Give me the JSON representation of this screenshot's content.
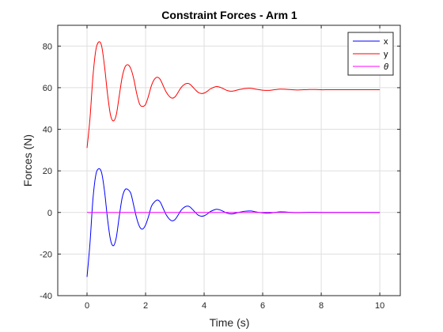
{
  "chart_data": {
    "type": "line",
    "title": "Constraint Forces - Arm 1",
    "xlabel": "Time (s)",
    "ylabel": "Forces (N)",
    "xlim": [
      -1,
      10.7
    ],
    "ylim": [
      -40,
      90
    ],
    "xticks": [
      0,
      2,
      4,
      6,
      8,
      10
    ],
    "yticks": [
      -40,
      -20,
      0,
      20,
      40,
      60,
      80
    ],
    "grid": true,
    "legend_position": "top-right",
    "series": [
      {
        "name": "x",
        "color": "#0000ff",
        "x": [
          0,
          0.1,
          0.2,
          0.3,
          0.4,
          0.5,
          0.6,
          0.7,
          0.8,
          0.9,
          1.0,
          1.1,
          1.2,
          1.3,
          1.4,
          1.5,
          1.6,
          1.7,
          1.8,
          1.9,
          2.0,
          2.1,
          2.2,
          2.3,
          2.4,
          2.5,
          2.6,
          2.7,
          2.8,
          2.9,
          3.0,
          3.1,
          3.2,
          3.3,
          3.4,
          3.5,
          3.6,
          3.7,
          3.8,
          3.9,
          4.0,
          4.1,
          4.2,
          4.3,
          4.4,
          4.5,
          4.6,
          4.7,
          4.8,
          4.9,
          5.0,
          5.2,
          5.4,
          5.6,
          5.8,
          6.0,
          6.2,
          6.4,
          6.6,
          6.8,
          7.0,
          7.2,
          7.4,
          7.6,
          7.8,
          8.0,
          8.2,
          8.4,
          8.6,
          8.8,
          9.0,
          9.2,
          9.4,
          9.6,
          9.8,
          10.0
        ],
        "y": [
          -31,
          -15,
          6,
          18,
          21,
          19,
          10,
          -3,
          -13,
          -16,
          -12,
          -2,
          7,
          11,
          11,
          9,
          3,
          -3,
          -7,
          -8,
          -6,
          -2,
          3,
          5,
          6,
          5,
          2,
          -1,
          -3,
          -4,
          -3.5,
          -1.5,
          0.8,
          2.3,
          3,
          2.8,
          1.5,
          0,
          -1.3,
          -1.8,
          -1.6,
          -0.8,
          0.3,
          1,
          1.5,
          1.4,
          0.9,
          0.2,
          -0.4,
          -0.7,
          -0.6,
          0.1,
          0.6,
          0.7,
          0.2,
          -0.2,
          -0.3,
          0,
          0.3,
          0.2,
          0,
          -0.1,
          0,
          0.1,
          0.1,
          0,
          0,
          0,
          0,
          0,
          0,
          0,
          0,
          0,
          0,
          0
        ]
      },
      {
        "name": "y",
        "color": "#ff0000",
        "x": [
          0,
          0.1,
          0.2,
          0.3,
          0.4,
          0.5,
          0.6,
          0.7,
          0.8,
          0.9,
          1.0,
          1.1,
          1.2,
          1.3,
          1.4,
          1.5,
          1.6,
          1.7,
          1.8,
          1.9,
          2.0,
          2.1,
          2.2,
          2.3,
          2.4,
          2.5,
          2.6,
          2.7,
          2.8,
          2.9,
          3.0,
          3.1,
          3.2,
          3.3,
          3.4,
          3.5,
          3.6,
          3.7,
          3.8,
          3.9,
          4.0,
          4.1,
          4.2,
          4.3,
          4.4,
          4.5,
          4.6,
          4.7,
          4.8,
          4.9,
          5.0,
          5.2,
          5.4,
          5.6,
          5.8,
          6.0,
          6.2,
          6.4,
          6.6,
          6.8,
          7.0,
          7.2,
          7.4,
          7.6,
          7.8,
          8.0,
          8.2,
          8.4,
          8.6,
          8.8,
          9.0,
          9.2,
          9.4,
          9.6,
          9.8,
          10.0
        ],
        "y": [
          31,
          45,
          65,
          78,
          82,
          80,
          70,
          57,
          47,
          44,
          47,
          56,
          65,
          70,
          71,
          69,
          64,
          57,
          52,
          51,
          52,
          56,
          61,
          64,
          65,
          64,
          61,
          58,
          56,
          55,
          55.5,
          57.5,
          59.8,
          61.3,
          62,
          61.8,
          60.5,
          59,
          57.7,
          57.2,
          57.4,
          58.2,
          59.3,
          60,
          60.5,
          60.4,
          59.9,
          59.2,
          58.6,
          58.3,
          58.4,
          59.1,
          59.6,
          59.7,
          59.2,
          58.8,
          58.7,
          59,
          59.3,
          59.2,
          59,
          58.9,
          59,
          59.1,
          59.1,
          59,
          59,
          59,
          59,
          59,
          59,
          59,
          59,
          59,
          59,
          59
        ]
      },
      {
        "name": "θ",
        "color": "#ff00ff",
        "x": [
          0,
          10
        ],
        "y": [
          0,
          0
        ]
      }
    ]
  }
}
